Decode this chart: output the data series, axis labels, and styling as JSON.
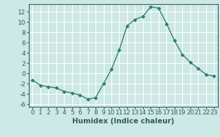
{
  "x": [
    0,
    1,
    2,
    3,
    4,
    5,
    6,
    7,
    8,
    9,
    10,
    11,
    12,
    13,
    14,
    15,
    16,
    17,
    18,
    19,
    20,
    21,
    22,
    23
  ],
  "y": [
    -1.3,
    -2.3,
    -2.6,
    -2.8,
    -3.5,
    -3.8,
    -4.2,
    -5.0,
    -4.7,
    -2.0,
    0.8,
    4.6,
    9.3,
    10.5,
    11.1,
    13.0,
    12.7,
    9.7,
    6.4,
    3.7,
    2.2,
    1.0,
    -0.2,
    -0.5
  ],
  "line_color": "#2e7d6e",
  "marker": "D",
  "marker_size": 2.5,
  "bg_color": "#cde8e5",
  "grid_color": "#ffffff",
  "xlabel": "Humidex (Indice chaleur)",
  "xlim": [
    -0.5,
    23.5
  ],
  "ylim": [
    -6.5,
    13.5
  ],
  "yticks": [
    -6,
    -4,
    -2,
    0,
    2,
    4,
    6,
    8,
    10,
    12
  ],
  "xticks": [
    0,
    1,
    2,
    3,
    4,
    5,
    6,
    7,
    8,
    9,
    10,
    11,
    12,
    13,
    14,
    15,
    16,
    17,
    18,
    19,
    20,
    21,
    22,
    23
  ],
  "xlabel_fontsize": 7.5,
  "tick_fontsize": 6.5,
  "spine_color": "#2e5c5c",
  "tick_color": "#2e5c5c"
}
